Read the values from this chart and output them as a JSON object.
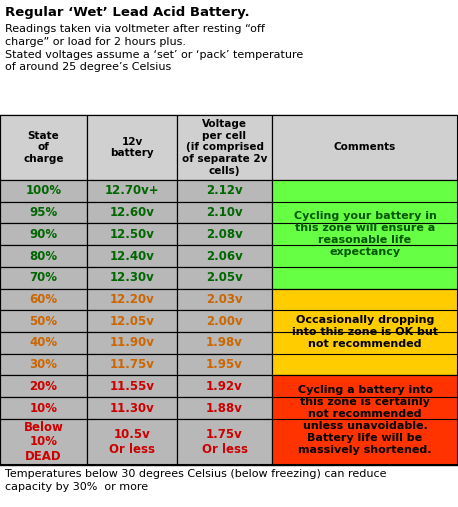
{
  "title_bold": "Regular ‘Wet’ Lead Acid Battery.",
  "subtitle": "Readings taken via voltmeter after resting “off\ncharge” or load for 2 hours plus.\nStated voltages assume a ‘set’ or ‘pack’ temperature\nof around 25 degree’s Celsius",
  "footer": "Temperatures below 30 degrees Celsius (below freezing) can reduce\ncapacity by 30%  or more",
  "col_headers": [
    "State\nof\ncharge",
    "12v\nbattery",
    "Voltage\nper cell\n(if comprised\nof separate 2v\ncells)",
    "Comments"
  ],
  "rows": [
    {
      "state": "100%",
      "v12": "12.70v+",
      "vcell": "2.12v"
    },
    {
      "state": "95%",
      "v12": "12.60v",
      "vcell": "2.10v"
    },
    {
      "state": "90%",
      "v12": "12.50v",
      "vcell": "2.08v"
    },
    {
      "state": "80%",
      "v12": "12.40v",
      "vcell": "2.06v"
    },
    {
      "state": "70%",
      "v12": "12.30v",
      "vcell": "2.05v"
    },
    {
      "state": "60%",
      "v12": "12.20v",
      "vcell": "2.03v"
    },
    {
      "state": "50%",
      "v12": "12.05v",
      "vcell": "2.00v"
    },
    {
      "state": "40%",
      "v12": "11.90v",
      "vcell": "1.98v"
    },
    {
      "state": "30%",
      "v12": "11.75v",
      "vcell": "1.95v"
    },
    {
      "state": "20%",
      "v12": "11.55v",
      "vcell": "1.92v"
    },
    {
      "state": "10%",
      "v12": "11.30v",
      "vcell": "1.88v"
    },
    {
      "state": "Below\n10%\nDEAD",
      "v12": "10.5v\nOr less",
      "vcell": "1.75v\nOr less"
    }
  ],
  "zone_comments": [
    "Cycling your battery in\nthis zone will ensure a\nreasonable life\nexpectancy",
    "Occasionally dropping\ninto this zone is OK but\nnot recommended",
    "Cycling a battery into\nthis zone is certainly\nnot recommended\nunless unavoidable.\nBattery life will be\nmassively shortened."
  ],
  "zone_colors": [
    "#66ff44",
    "#ffcc00",
    "#ff3300"
  ],
  "zone_comment_colors": [
    "#005500",
    "#000000",
    "#000000"
  ],
  "zone_ranges": [
    [
      0,
      4
    ],
    [
      5,
      8
    ],
    [
      9,
      11
    ]
  ],
  "state_text_colors": [
    "#006600",
    "#006600",
    "#006600",
    "#006600",
    "#006600",
    "#cc6600",
    "#cc6600",
    "#cc6600",
    "#cc6600",
    "#cc0000",
    "#cc0000",
    "#cc0000"
  ],
  "header_bg": "#d0d0d0",
  "cell_bg": "#b8b8b8",
  "fig_bg": "#ffffff",
  "title_fontsize": 9.5,
  "subtitle_fontsize": 8.0,
  "footer_fontsize": 8.0,
  "header_fontsize": 7.5,
  "cell_fontsize": 8.5,
  "comment_fontsize": 8.0
}
